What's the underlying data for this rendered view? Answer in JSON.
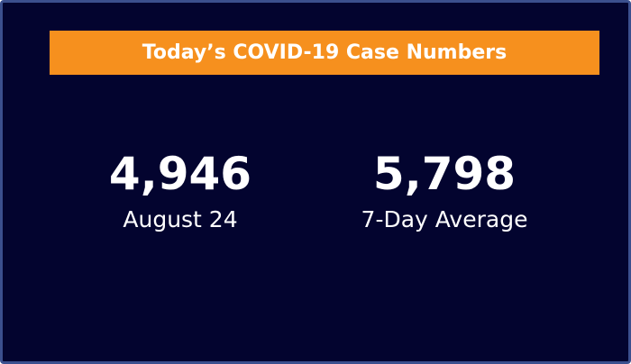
{
  "header": {
    "title": "Today’s COVID-19 Case Numbers"
  },
  "stats": [
    {
      "value": "4,946",
      "label": "August 24"
    },
    {
      "value": "5,798",
      "label": "7-Day Average"
    }
  ]
}
